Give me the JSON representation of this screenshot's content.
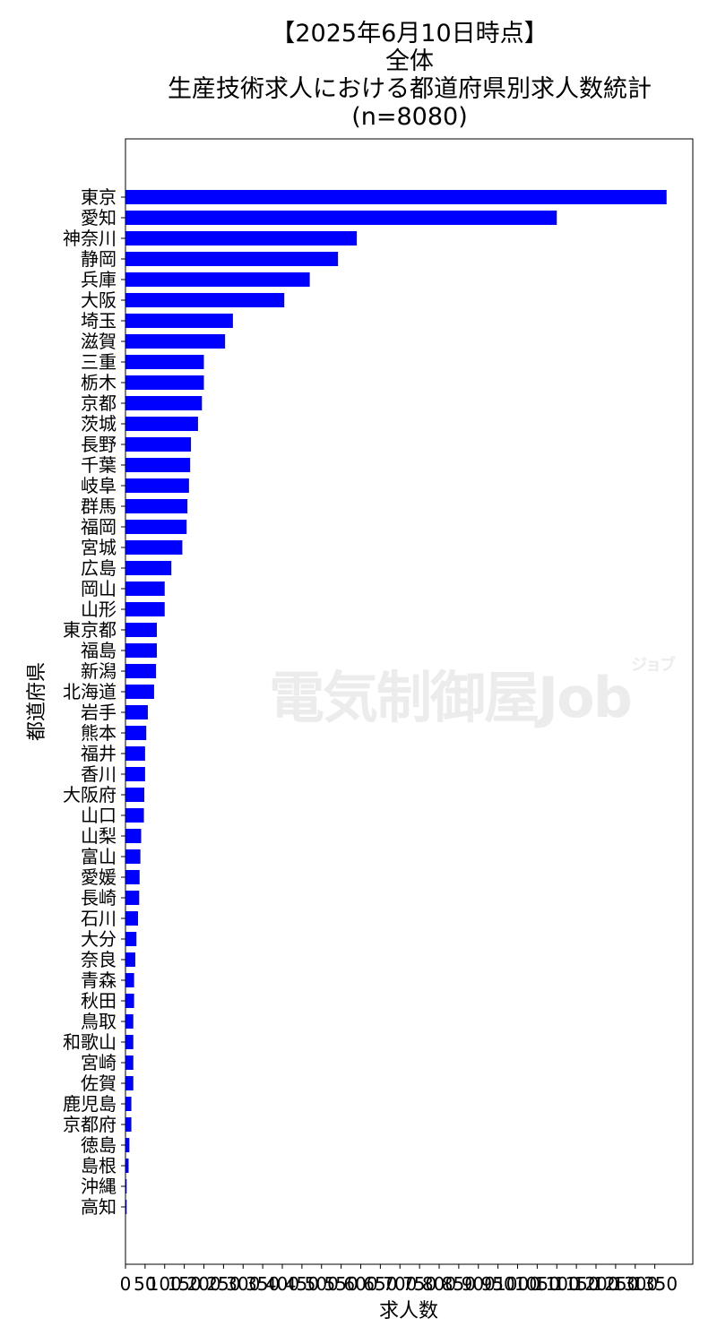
{
  "title_lines": [
    "【2025年6月10日時点】",
    "全体",
    "生産技術求人における都道府県別求人数統計",
    "(n=8080)"
  ],
  "watermark": {
    "brand": "電気制御屋",
    "suffix": "Job",
    "kana": "ジョブ"
  },
  "chart_data": {
    "type": "bar",
    "orientation": "horizontal",
    "xlabel": "求人数",
    "ylabel": "都道府県",
    "xlim": [
      0,
      1450
    ],
    "xticks": [
      0,
      50,
      100,
      150,
      200,
      250,
      300,
      350,
      400,
      450,
      500,
      550,
      600,
      650,
      700,
      750,
      800,
      850,
      900,
      950,
      1000,
      1050,
      1100,
      1150,
      1200,
      1250,
      1300,
      1350
    ],
    "bar_color": "#0000ff",
    "grid": false,
    "categories": [
      "東京",
      "愛知",
      "神奈川",
      "静岡",
      "兵庫",
      "大阪",
      "埼玉",
      "滋賀",
      "三重",
      "栃木",
      "京都",
      "茨城",
      "長野",
      "千葉",
      "岐阜",
      "群馬",
      "福岡",
      "宮城",
      "広島",
      "岡山",
      "山形",
      "東京都",
      "福島",
      "新潟",
      "北海道",
      "岩手",
      "熊本",
      "福井",
      "香川",
      "大阪府",
      "山口",
      "山梨",
      "富山",
      "愛媛",
      "長崎",
      "石川",
      "大分",
      "奈良",
      "青森",
      "秋田",
      "鳥取",
      "和歌山",
      "宮崎",
      "佐賀",
      "鹿児島",
      "京都府",
      "徳島",
      "島根",
      "沖縄",
      "高知"
    ],
    "values": [
      1380,
      1100,
      590,
      542,
      470,
      405,
      274,
      254,
      200,
      200,
      195,
      185,
      167,
      165,
      162,
      158,
      156,
      145,
      117,
      100,
      100,
      80,
      80,
      78,
      73,
      57,
      53,
      50,
      50,
      48,
      47,
      40,
      38,
      36,
      35,
      32,
      28,
      25,
      22,
      22,
      20,
      20,
      20,
      20,
      15,
      15,
      10,
      8,
      3,
      3
    ]
  }
}
